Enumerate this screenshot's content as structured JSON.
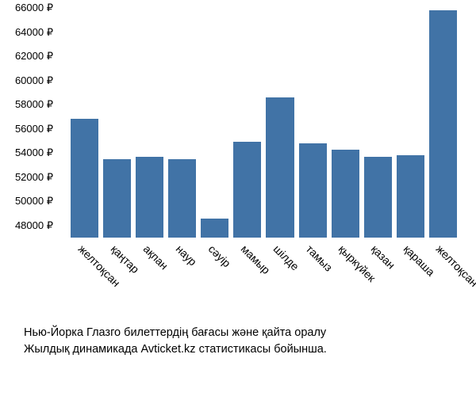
{
  "chart": {
    "type": "bar",
    "currency_suffix": " ₽",
    "y_axis": {
      "min": 47000,
      "max": 66000,
      "tick_start": 48000,
      "tick_end": 66000,
      "tick_step": 2000,
      "label_fontsize": 13,
      "label_color": "#000000"
    },
    "x_axis": {
      "label_rotation_deg": 45,
      "label_fontsize": 14,
      "label_color": "#000000"
    },
    "bar_color": "#4173a6",
    "background_color": "#ffffff",
    "categories": [
      "желтоқсан",
      "қаңтар",
      "ақпан",
      "наур",
      "сәуір",
      "мамыр",
      "шілде",
      "тамыз",
      "қыркүйек",
      "қазан",
      "қараша",
      "желтоқсан"
    ],
    "values": [
      56800,
      53500,
      53700,
      53500,
      48600,
      54900,
      58600,
      54800,
      54300,
      53700,
      53800,
      65800
    ]
  },
  "caption": {
    "line1": "Нью-Йорка Глазго билеттердің бағасы және қайта оралу",
    "line2": "Жылдық динамикада Avticket.kz статистикасы бойынша.",
    "fontsize": 14.5,
    "color": "#000000"
  }
}
